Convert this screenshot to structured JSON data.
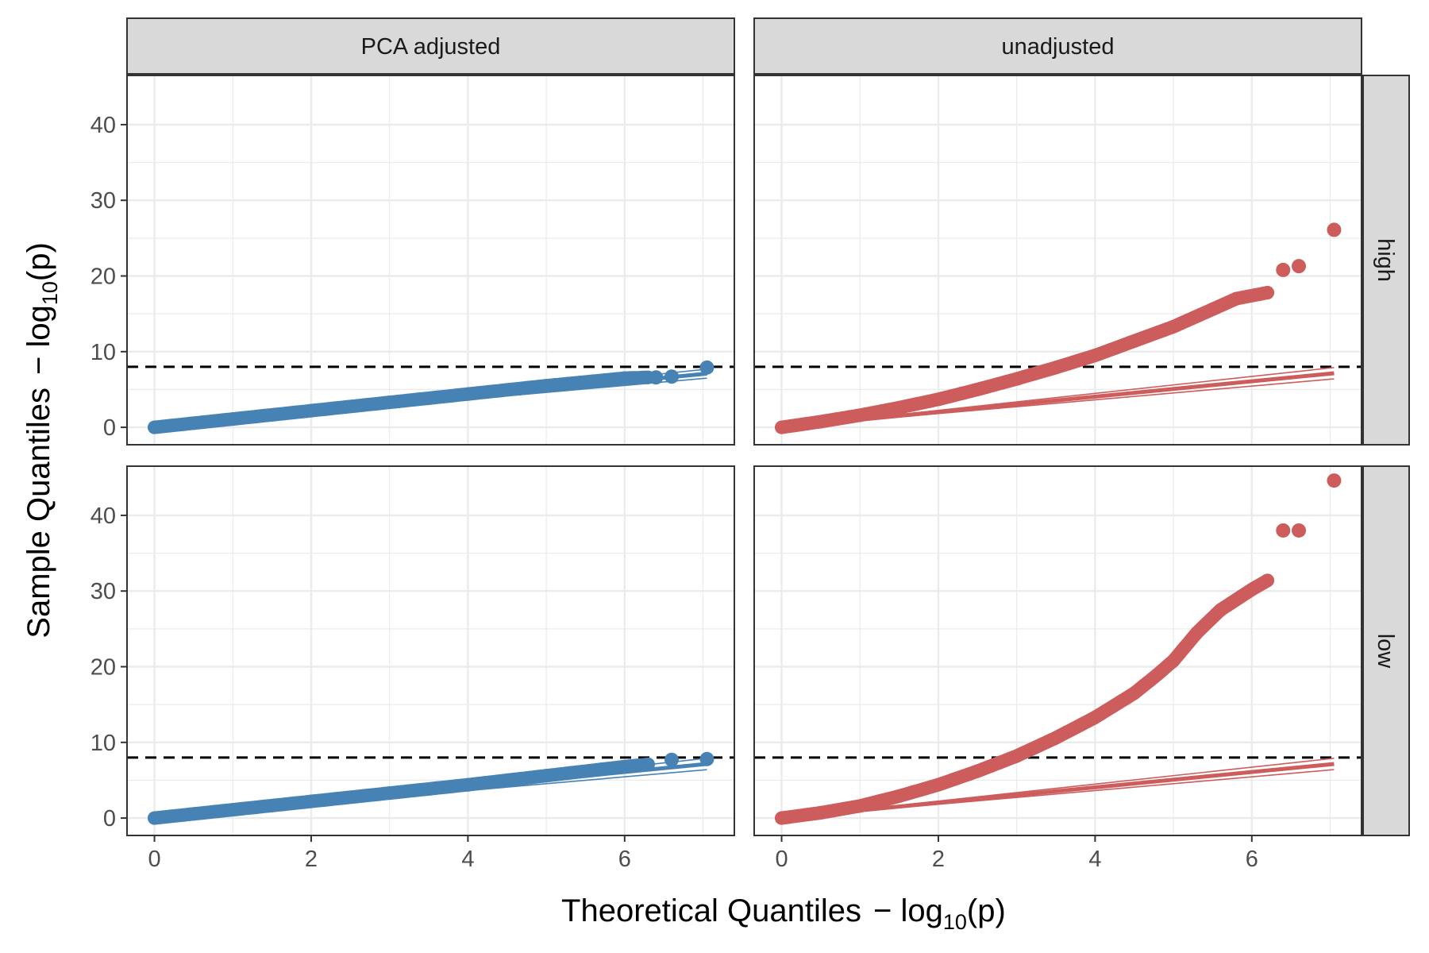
{
  "chart_data": {
    "type": "scatter",
    "layout": "facet-grid",
    "xlabel": "Theoretical Quantiles",
    "ylabel": "Sample Quantiles",
    "axis_suffix": {
      "prefix": "− log",
      "subscript": "10",
      "arg": "(p)"
    },
    "xlim": [
      -0.35,
      7.4
    ],
    "ylim": [
      -2.3,
      46.5
    ],
    "xticks": [
      0,
      2,
      4,
      6
    ],
    "yticks": [
      0,
      10,
      20,
      30,
      40
    ],
    "threshold": 8,
    "columns": [
      "PCA adjusted",
      "unadjusted"
    ],
    "rows": [
      "high",
      "low"
    ],
    "grid": true,
    "colors": {
      "PCA adjusted": "#4682b4",
      "unadjusted": "#cd5c5c",
      "threshold": "#000000",
      "strip": "#d9d9d9",
      "grid": "#ebebeb"
    },
    "panels": [
      {
        "column": "PCA adjusted",
        "row": "high",
        "curve": [
          [
            0,
            0
          ],
          [
            0.5,
            0.55
          ],
          [
            1,
            1.1
          ],
          [
            2,
            2.2
          ],
          [
            3,
            3.3
          ],
          [
            4,
            4.4
          ],
          [
            5,
            5.5
          ],
          [
            6,
            6.5
          ],
          [
            6.3,
            6.6
          ]
        ],
        "extra_points": [
          [
            6.4,
            6.6
          ],
          [
            6.6,
            6.7
          ],
          [
            7.05,
            7.9
          ]
        ],
        "band_end": [
          7.05,
          6.5,
          7.7
        ]
      },
      {
        "column": "unadjusted",
        "row": "high",
        "curve": [
          [
            0,
            0
          ],
          [
            0.5,
            0.75
          ],
          [
            1,
            1.6
          ],
          [
            1.5,
            2.6
          ],
          [
            2,
            3.7
          ],
          [
            2.5,
            5.0
          ],
          [
            3,
            6.4
          ],
          [
            3.5,
            7.9
          ],
          [
            4,
            9.5
          ],
          [
            4.5,
            11.4
          ],
          [
            5,
            13.3
          ],
          [
            5.5,
            15.6
          ],
          [
            5.8,
            17.0
          ],
          [
            6.2,
            17.8
          ]
        ],
        "extra_points": [
          [
            6.4,
            20.8
          ],
          [
            6.6,
            21.3
          ],
          [
            7.05,
            26.1
          ]
        ],
        "band_end": [
          7.05,
          6.4,
          7.9
        ]
      },
      {
        "column": "PCA adjusted",
        "row": "low",
        "curve": [
          [
            0,
            0
          ],
          [
            0.5,
            0.55
          ],
          [
            1,
            1.1
          ],
          [
            2,
            2.2
          ],
          [
            3,
            3.3
          ],
          [
            4,
            4.4
          ],
          [
            5,
            5.6
          ],
          [
            6,
            6.8
          ],
          [
            6.3,
            7.1
          ]
        ],
        "extra_points": [
          [
            6.6,
            7.7
          ],
          [
            7.05,
            7.8
          ]
        ],
        "band_end": [
          7.05,
          6.4,
          7.9
        ]
      },
      {
        "column": "unadjusted",
        "row": "low",
        "curve": [
          [
            0,
            0
          ],
          [
            0.5,
            0.7
          ],
          [
            1,
            1.6
          ],
          [
            1.5,
            2.9
          ],
          [
            2,
            4.4
          ],
          [
            2.5,
            6.2
          ],
          [
            3,
            8.2
          ],
          [
            3.5,
            10.6
          ],
          [
            4,
            13.3
          ],
          [
            4.5,
            16.5
          ],
          [
            4.8,
            19.0
          ],
          [
            5,
            20.8
          ],
          [
            5.3,
            24.5
          ],
          [
            5.6,
            27.5
          ],
          [
            6,
            30.2
          ],
          [
            6.2,
            31.4
          ]
        ],
        "extra_points": [
          [
            6.4,
            38.0
          ],
          [
            6.6,
            38.0
          ],
          [
            7.05,
            44.6
          ]
        ],
        "band_end": [
          7.05,
          6.4,
          7.9
        ]
      }
    ]
  }
}
